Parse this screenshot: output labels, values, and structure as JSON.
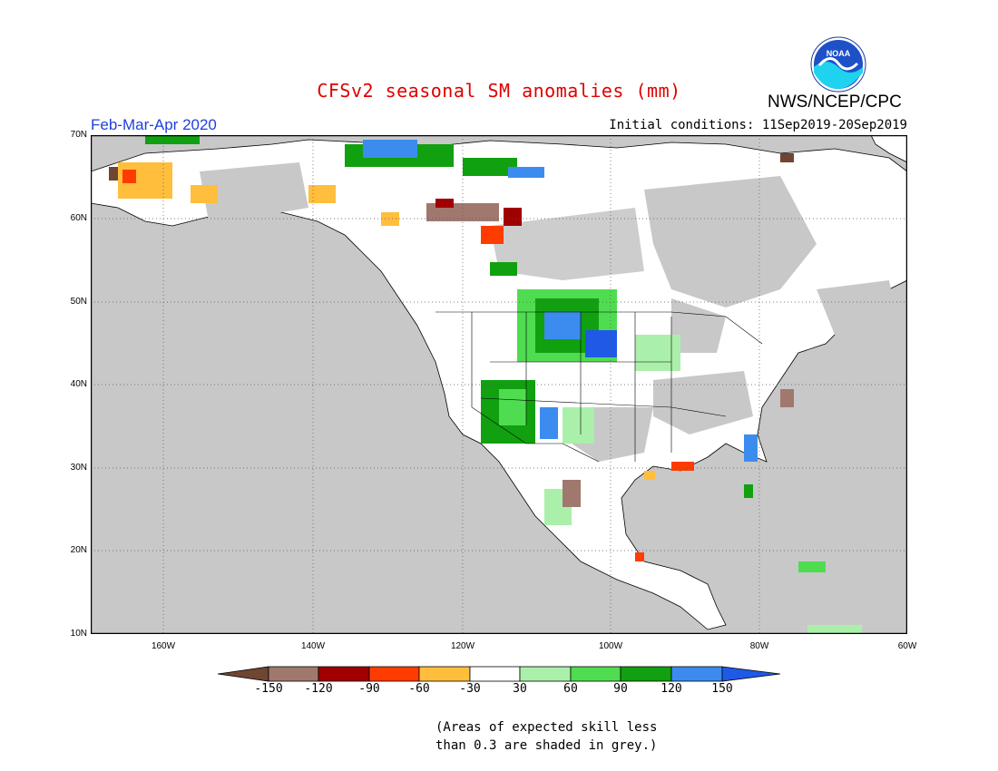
{
  "header": {
    "title": "CFSv2 seasonal SM anomalies (mm)",
    "organization": "NWS/NCEP/CPC",
    "period": "Feb-Mar-Apr 2020",
    "initial_conditions": "Initial conditions: 11Sep2019-20Sep2019",
    "logo_text": "NOAA"
  },
  "map": {
    "lat_labels": [
      "70N",
      "60N",
      "50N",
      "40N",
      "30N",
      "20N",
      "10N"
    ],
    "lon_labels": [
      "160W",
      "140W",
      "120W",
      "100W",
      "80W",
      "60W"
    ],
    "colors": {
      "ocean": "#c8c8c8",
      "land": "#ffffff",
      "grey_skill": "#c8c8c8"
    }
  },
  "legend": {
    "labels": [
      "-150",
      "-120",
      "-90",
      "-60",
      "-30",
      "30",
      "60",
      "90",
      "120",
      "150"
    ],
    "colors": [
      "#6e4632",
      "#a0786e",
      "#a00000",
      "#ff3c00",
      "#ffbe3c",
      "#ffffff",
      "#aaf0aa",
      "#50dc50",
      "#10a010",
      "#3c8cf0",
      "#1e5ae6"
    ]
  },
  "note": {
    "line1": "(Areas of expected skill less",
    "line2": "than 0.3 are shaded in grey.)"
  }
}
